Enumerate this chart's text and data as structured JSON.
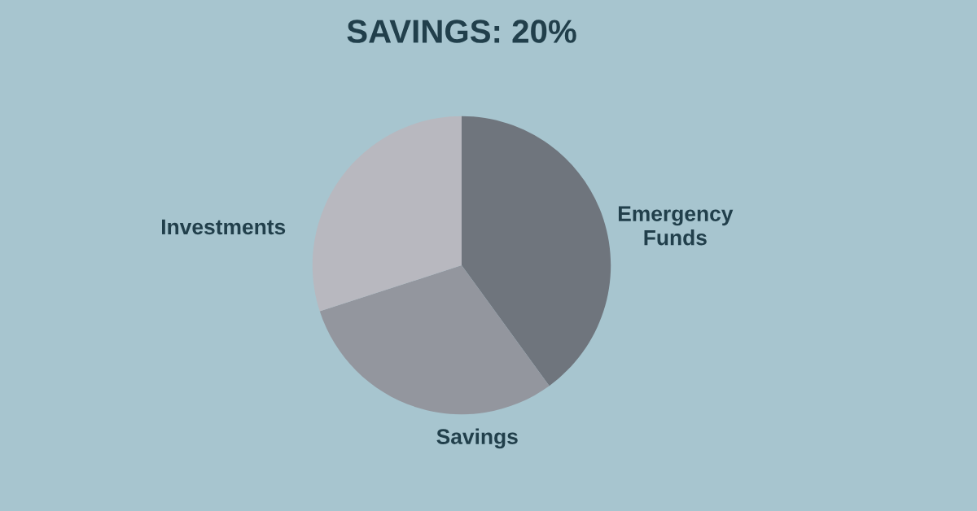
{
  "chart_data": {
    "type": "pie",
    "title": "SAVINGS: 20%",
    "categories": [
      "Emergency Funds",
      "Savings",
      "Investments"
    ],
    "values": [
      40,
      30,
      30
    ],
    "colors": [
      "#6f757d",
      "#93969e",
      "#b8b8bf"
    ]
  }
}
